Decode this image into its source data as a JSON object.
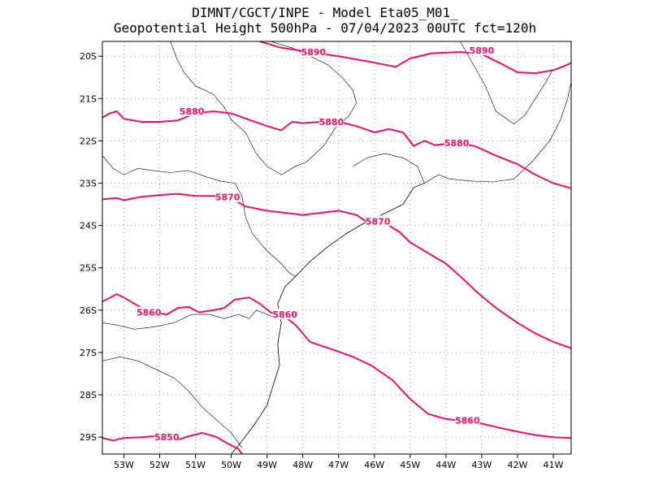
{
  "title": {
    "line1": "DIMNT/CGCT/INPE -  Model Eta05_M01_",
    "line2": "Geopotential Height 500hPa -  07/04/2023 00UTC fct=120h"
  },
  "axes": {
    "lon_min": -53.6,
    "lon_max": -40.5,
    "lat_min": -29.4,
    "lat_max": -19.65,
    "x_ticks": [
      {
        "value": -53,
        "label": "53W"
      },
      {
        "value": -52,
        "label": "52W"
      },
      {
        "value": -51,
        "label": "51W"
      },
      {
        "value": -50,
        "label": "50W"
      },
      {
        "value": -49,
        "label": "49W"
      },
      {
        "value": -48,
        "label": "48W"
      },
      {
        "value": -47,
        "label": "47W"
      },
      {
        "value": -46,
        "label": "46W"
      },
      {
        "value": -45,
        "label": "45W"
      },
      {
        "value": -44,
        "label": "44W"
      },
      {
        "value": -43,
        "label": "43W"
      },
      {
        "value": -42,
        "label": "42W"
      },
      {
        "value": -41,
        "label": "41W"
      }
    ],
    "y_ticks": [
      {
        "value": -20,
        "label": "20S"
      },
      {
        "value": -21,
        "label": "21S"
      },
      {
        "value": -22,
        "label": "22S"
      },
      {
        "value": -23,
        "label": "23S"
      },
      {
        "value": -24,
        "label": "24S"
      },
      {
        "value": -25,
        "label": "25S"
      },
      {
        "value": -26,
        "label": "26S"
      },
      {
        "value": -27,
        "label": "27S"
      },
      {
        "value": -28,
        "label": "28S"
      },
      {
        "value": -29,
        "label": "29S"
      }
    ],
    "grid": true
  },
  "colors": {
    "contour": "#ee1166",
    "coast": "#000000",
    "grid": "#999999"
  },
  "contours": [
    {
      "level": "5890",
      "points": [
        [
          -49.2,
          -19.65
        ],
        [
          -48.6,
          -19.8
        ],
        [
          -47.8,
          -19.9
        ],
        [
          -47.0,
          -20.0
        ],
        [
          -46.0,
          -20.15
        ],
        [
          -45.4,
          -20.25
        ],
        [
          -45.0,
          -20.05
        ],
        [
          -44.4,
          -19.93
        ],
        [
          -43.6,
          -19.9
        ],
        [
          -43.0,
          -19.95
        ],
        [
          -42.4,
          -20.2
        ],
        [
          -42.0,
          -20.38
        ],
        [
          -41.5,
          -20.4
        ],
        [
          -41.0,
          -20.33
        ],
        [
          -40.6,
          -20.2
        ],
        [
          -40.5,
          -20.15
        ]
      ],
      "labels": [
        {
          "lon": -47.7,
          "lat": -19.9,
          "text": "5890"
        },
        {
          "lon": -43.0,
          "lat": -19.86,
          "text": "5890"
        }
      ]
    },
    {
      "level": "5880",
      "points": [
        [
          -53.6,
          -21.45
        ],
        [
          -53.4,
          -21.35
        ],
        [
          -53.2,
          -21.3
        ],
        [
          -53.0,
          -21.48
        ],
        [
          -52.5,
          -21.55
        ],
        [
          -52.0,
          -21.55
        ],
        [
          -51.5,
          -21.52
        ],
        [
          -51.0,
          -21.35
        ],
        [
          -50.5,
          -21.3
        ],
        [
          -50.0,
          -21.35
        ],
        [
          -49.5,
          -21.5
        ],
        [
          -49.0,
          -21.65
        ],
        [
          -48.6,
          -21.75
        ],
        [
          -48.3,
          -21.55
        ],
        [
          -48.0,
          -21.58
        ],
        [
          -47.5,
          -21.55
        ],
        [
          -47.0,
          -21.55
        ],
        [
          -46.5,
          -21.65
        ],
        [
          -46.0,
          -21.8
        ],
        [
          -45.6,
          -21.72
        ],
        [
          -45.2,
          -21.8
        ],
        [
          -44.9,
          -22.12
        ],
        [
          -44.6,
          -22.0
        ],
        [
          -44.3,
          -22.1
        ],
        [
          -43.8,
          -22.05
        ],
        [
          -43.2,
          -22.12
        ],
        [
          -42.6,
          -22.35
        ],
        [
          -42.0,
          -22.55
        ],
        [
          -41.5,
          -22.8
        ],
        [
          -41.0,
          -23.0
        ],
        [
          -40.5,
          -23.12
        ]
      ],
      "labels": [
        {
          "lon": -51.1,
          "lat": -21.3,
          "text": "5880"
        },
        {
          "lon": -47.2,
          "lat": -21.55,
          "text": "5880"
        },
        {
          "lon": -43.7,
          "lat": -22.05,
          "text": "5880"
        }
      ]
    },
    {
      "level": "5870",
      "points": [
        [
          -53.6,
          -23.38
        ],
        [
          -53.2,
          -23.35
        ],
        [
          -53.0,
          -23.4
        ],
        [
          -52.5,
          -23.32
        ],
        [
          -52.0,
          -23.28
        ],
        [
          -51.5,
          -23.25
        ],
        [
          -51.0,
          -23.3
        ],
        [
          -50.5,
          -23.3
        ],
        [
          -50.0,
          -23.35
        ],
        [
          -49.6,
          -23.55
        ],
        [
          -49.0,
          -23.65
        ],
        [
          -48.5,
          -23.7
        ],
        [
          -48.0,
          -23.75
        ],
        [
          -47.5,
          -23.7
        ],
        [
          -47.0,
          -23.65
        ],
        [
          -46.5,
          -23.75
        ],
        [
          -46.2,
          -23.92
        ],
        [
          -45.8,
          -23.9
        ],
        [
          -45.3,
          -24.15
        ],
        [
          -45.0,
          -24.4
        ],
        [
          -44.5,
          -24.65
        ],
        [
          -44.0,
          -24.9
        ],
        [
          -43.6,
          -25.2
        ],
        [
          -43.1,
          -25.6
        ],
        [
          -42.6,
          -25.95
        ],
        [
          -42.0,
          -26.3
        ],
        [
          -41.5,
          -26.55
        ],
        [
          -41.0,
          -26.75
        ],
        [
          -40.5,
          -26.9
        ]
      ],
      "labels": [
        {
          "lon": -50.1,
          "lat": -23.33,
          "text": "5870"
        },
        {
          "lon": -45.9,
          "lat": -23.9,
          "text": "5870"
        }
      ]
    },
    {
      "level": "5860",
      "points": [
        [
          -53.6,
          -25.8
        ],
        [
          -53.2,
          -25.62
        ],
        [
          -53.0,
          -25.7
        ],
        [
          -52.6,
          -25.9
        ],
        [
          -52.2,
          -26.05
        ],
        [
          -51.8,
          -26.1
        ],
        [
          -51.5,
          -25.95
        ],
        [
          -51.2,
          -25.92
        ],
        [
          -50.9,
          -26.05
        ],
        [
          -50.5,
          -26.0
        ],
        [
          -50.2,
          -25.95
        ],
        [
          -49.9,
          -25.75
        ],
        [
          -49.5,
          -25.7
        ],
        [
          -49.2,
          -25.85
        ],
        [
          -48.9,
          -26.05
        ],
        [
          -48.5,
          -26.15
        ],
        [
          -48.2,
          -26.35
        ],
        [
          -47.8,
          -26.75
        ],
        [
          -47.2,
          -26.92
        ],
        [
          -46.6,
          -27.1
        ],
        [
          -46.1,
          -27.3
        ],
        [
          -45.5,
          -27.65
        ],
        [
          -45.0,
          -28.1
        ],
        [
          -44.5,
          -28.45
        ],
        [
          -44.0,
          -28.57
        ],
        [
          -43.5,
          -28.62
        ],
        [
          -43.0,
          -28.68
        ],
        [
          -42.5,
          -28.78
        ],
        [
          -42.0,
          -28.87
        ],
        [
          -41.5,
          -28.95
        ],
        [
          -41.0,
          -29.0
        ],
        [
          -40.5,
          -29.02
        ]
      ],
      "labels": [
        {
          "lon": -52.3,
          "lat": -26.05,
          "text": "5860"
        },
        {
          "lon": -48.5,
          "lat": -26.1,
          "text": "5860"
        },
        {
          "lon": -43.4,
          "lat": -28.6,
          "text": "5860"
        }
      ]
    },
    {
      "level": "5850",
      "points": [
        [
          -53.6,
          -29.02
        ],
        [
          -53.3,
          -29.08
        ],
        [
          -53.0,
          -29.02
        ],
        [
          -52.5,
          -29.0
        ],
        [
          -52.2,
          -28.98
        ],
        [
          -51.8,
          -29.0
        ],
        [
          -51.5,
          -29.07
        ],
        [
          -51.2,
          -28.98
        ],
        [
          -50.8,
          -28.9
        ],
        [
          -50.4,
          -29.0
        ],
        [
          -50.1,
          -29.15
        ],
        [
          -49.8,
          -29.28
        ],
        [
          -49.7,
          -29.4
        ]
      ],
      "labels": [
        {
          "lon": -51.8,
          "lat": -29.0,
          "text": "5850"
        }
      ]
    }
  ],
  "coastline": [
    [
      -44.6,
      -23.0
    ],
    [
      -44.9,
      -23.1
    ],
    [
      -45.2,
      -23.5
    ],
    [
      -45.8,
      -23.75
    ],
    [
      -46.3,
      -23.95
    ],
    [
      -46.8,
      -24.2
    ],
    [
      -47.3,
      -24.5
    ],
    [
      -47.8,
      -24.85
    ],
    [
      -48.2,
      -25.2
    ],
    [
      -48.5,
      -25.45
    ],
    [
      -48.7,
      -25.85
    ],
    [
      -48.6,
      -26.3
    ],
    [
      -48.7,
      -26.8
    ],
    [
      -48.65,
      -27.3
    ],
    [
      -48.8,
      -27.7
    ],
    [
      -49.0,
      -28.25
    ],
    [
      -49.35,
      -28.7
    ],
    [
      -49.8,
      -29.2
    ],
    [
      -50.0,
      -29.4
    ]
  ],
  "borders": [
    [
      [
        -51.7,
        -19.65
      ],
      [
        -51.5,
        -20.1
      ],
      [
        -51.3,
        -20.4
      ],
      [
        -51.0,
        -20.7
      ],
      [
        -50.5,
        -20.9
      ],
      [
        -50.2,
        -21.2
      ],
      [
        -50.0,
        -21.5
      ],
      [
        -49.6,
        -21.8
      ],
      [
        -49.3,
        -22.3
      ],
      [
        -49.0,
        -22.6
      ],
      [
        -48.6,
        -22.8
      ],
      [
        -48.2,
        -22.6
      ],
      [
        -47.9,
        -22.5
      ]
    ],
    [
      [
        -53.6,
        -22.35
      ],
      [
        -53.3,
        -22.65
      ],
      [
        -53.0,
        -22.8
      ],
      [
        -52.6,
        -22.65
      ],
      [
        -52.2,
        -22.7
      ],
      [
        -51.7,
        -22.75
      ],
      [
        -51.2,
        -22.7
      ],
      [
        -50.7,
        -22.85
      ],
      [
        -50.3,
        -22.95
      ],
      [
        -49.9,
        -23.0
      ],
      [
        -49.7,
        -23.3
      ],
      [
        -49.6,
        -23.8
      ],
      [
        -49.4,
        -24.2
      ],
      [
        -49.0,
        -24.6
      ],
      [
        -48.6,
        -24.9
      ],
      [
        -48.4,
        -25.1
      ],
      [
        -48.2,
        -25.2
      ]
    ],
    [
      [
        -53.6,
        -26.3
      ],
      [
        -53.2,
        -26.35
      ],
      [
        -52.7,
        -26.45
      ],
      [
        -52.2,
        -26.4
      ],
      [
        -51.6,
        -26.3
      ],
      [
        -51.1,
        -26.1
      ],
      [
        -50.6,
        -26.1
      ],
      [
        -50.2,
        -26.2
      ],
      [
        -49.8,
        -26.1
      ],
      [
        -49.5,
        -26.2
      ],
      [
        -49.3,
        -26.0
      ],
      [
        -49.0,
        -26.1
      ],
      [
        -48.7,
        -26.2
      ]
    ],
    [
      [
        -53.6,
        -27.2
      ],
      [
        -53.1,
        -27.1
      ],
      [
        -52.6,
        -27.2
      ],
      [
        -52.1,
        -27.4
      ],
      [
        -51.6,
        -27.6
      ],
      [
        -51.2,
        -27.9
      ],
      [
        -50.8,
        -28.3
      ],
      [
        -50.4,
        -28.6
      ],
      [
        -50.0,
        -28.9
      ],
      [
        -49.7,
        -29.25
      ]
    ],
    [
      [
        -47.9,
        -22.5
      ],
      [
        -47.4,
        -22.1
      ],
      [
        -47.1,
        -21.7
      ],
      [
        -46.7,
        -21.4
      ],
      [
        -46.5,
        -21.1
      ],
      [
        -46.6,
        -20.8
      ],
      [
        -46.9,
        -20.5
      ],
      [
        -47.3,
        -20.2
      ],
      [
        -47.8,
        -20.0
      ],
      [
        -48.3,
        -19.8
      ],
      [
        -48.9,
        -19.65
      ]
    ],
    [
      [
        -46.6,
        -22.6
      ],
      [
        -46.2,
        -22.4
      ],
      [
        -45.7,
        -22.3
      ],
      [
        -45.2,
        -22.4
      ],
      [
        -44.8,
        -22.6
      ],
      [
        -44.6,
        -23.0
      ]
    ],
    [
      [
        -43.6,
        -19.65
      ],
      [
        -43.3,
        -20.1
      ],
      [
        -42.9,
        -20.7
      ],
      [
        -42.6,
        -21.3
      ],
      [
        -42.1,
        -21.6
      ],
      [
        -41.8,
        -21.4
      ],
      [
        -41.5,
        -21.0
      ],
      [
        -41.2,
        -20.6
      ],
      [
        -41.0,
        -20.3
      ]
    ],
    [
      [
        -43.9,
        -22.9
      ],
      [
        -43.3,
        -22.95
      ],
      [
        -42.7,
        -22.97
      ],
      [
        -42.1,
        -22.9
      ],
      [
        -41.6,
        -22.5
      ],
      [
        -41.1,
        -22.0
      ],
      [
        -40.8,
        -21.5
      ],
      [
        -40.6,
        -21.0
      ],
      [
        -40.5,
        -20.6
      ]
    ],
    [
      [
        -44.6,
        -23.0
      ],
      [
        -44.2,
        -22.8
      ],
      [
        -43.9,
        -22.9
      ]
    ]
  ]
}
